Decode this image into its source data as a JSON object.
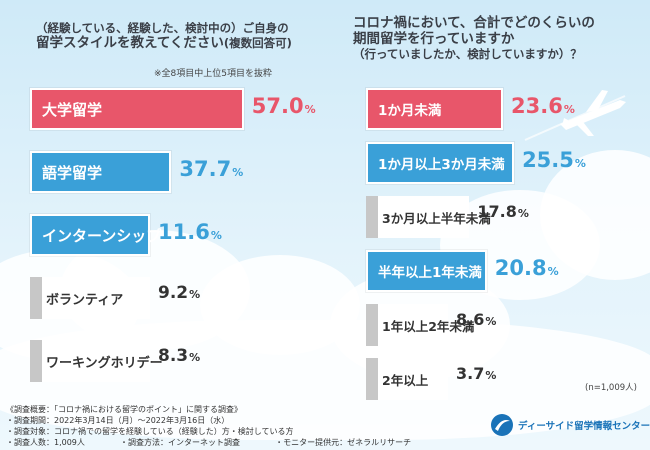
{
  "chart_data": [
    {
      "type": "bar",
      "orientation": "horizontal",
      "title_line1": "（経験している、経験した、検討中の）ご自身の",
      "title_line2": "留学スタイルを教えてください",
      "title_sub": "(複数回答可)",
      "note": "※全8項目中上位5項目を抜粋",
      "categories": [
        "大学留学",
        "語学留学",
        "インターンシップ",
        "ボランティア",
        "ワーキングホリデー"
      ],
      "values": [
        57.0,
        37.7,
        11.6,
        9.2,
        8.3
      ],
      "value_labels": [
        "57.0",
        "37.7",
        "11.6",
        "9.2",
        "8.3"
      ],
      "unit": "%",
      "xlim": [
        0,
        80
      ],
      "colors": [
        "#e8566a",
        "#3aa0d8",
        "#3aa0d8",
        "#c7c7c7",
        "#c7c7c7"
      ]
    },
    {
      "type": "bar",
      "orientation": "horizontal",
      "title_line1": "コロナ禍において、合計でどのくらいの",
      "title_line2": "期間留学を行っていますか",
      "title_sub": "（行っていましたか、検討していますか）？",
      "categories": [
        "1か月未満",
        "1か月以上3か月未満",
        "3か月以上半年未満",
        "半年以上1年未満",
        "1年以上2年未満",
        "2年以上"
      ],
      "values": [
        23.6,
        25.5,
        17.8,
        20.8,
        8.6,
        3.7
      ],
      "value_labels": [
        "23.6",
        "25.5",
        "17.8",
        "20.8",
        "8.6",
        "3.7"
      ],
      "unit": "%",
      "xlim": [
        0,
        31
      ],
      "colors": [
        "#e8566a",
        "#3aa0d8",
        "#c7c7c7",
        "#3aa0d8",
        "#c7c7c7",
        "#c7c7c7"
      ],
      "n_note": "(n=1,009人)"
    }
  ],
  "footer": {
    "line1": "《調査概要：「コロナ禍における留学のポイント」に関する調査》",
    "line2": "・調査期間：2022年3月14日（月）～2022年3月16日（水）",
    "line3": "・調査対象：コロナ禍での留学を経験している（経験した）方・検討している方",
    "line4a": "・調査人数：1,009人",
    "line4b": "・調査方法：インターネット調査",
    "line4c": "・モニター提供元：ゼネラルリサーチ"
  },
  "logo": {
    "text": "ディーサイド留学情報センター"
  }
}
